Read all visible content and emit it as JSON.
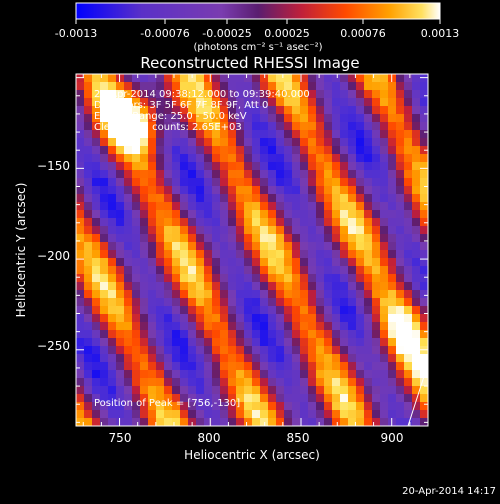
{
  "colorbar": {
    "tick_labels": [
      "-0.0013",
      "-0.00076",
      "-0.00025",
      "0.00025",
      "0.00076",
      "0.0013"
    ],
    "min": -0.0013,
    "max": 0.0013,
    "unit_text": "(photons cm⁻² s⁻¹ asec⁻²)"
  },
  "plot": {
    "title": "Reconstructed RHESSI Image",
    "xlabel": "Heliocentric X (arcsec)",
    "ylabel": "Heliocentric Y (arcsec)"
  },
  "annotations": {
    "line1": "20-Apr-2014 09:38:12.000 to 09:39:40.000",
    "line2": "Detectors: 3F 5F 6F 7F 8F 9F, Att 0",
    "line3": "Energy Range: 25.0 - 50.0 keV",
    "line4": "Clean  Total counts: 2.65E+03",
    "peak": "Position of Peak = [756,-130]"
  },
  "footer": {
    "timestamp": "20-Apr-2014 14:17"
  },
  "colors": {
    "background": "#000000",
    "axis": "#ffffff",
    "text": "#ffffff",
    "colormap": [
      "#0000ff",
      "#4b2bd1",
      "#7a3cb0",
      "#6a2a90",
      "#c0203a",
      "#ff5000",
      "#ffa000",
      "#ffe040",
      "#ffffff"
    ]
  },
  "chart_data": {
    "type": "heatmap",
    "title": "Reconstructed RHESSI Image",
    "xlabel": "Heliocentric X (arcsec)",
    "ylabel": "Heliocentric Y (arcsec)",
    "xlim": [
      726,
      920
    ],
    "ylim": [
      -292,
      -98
    ],
    "xticks": [
      750,
      800,
      850,
      900
    ],
    "yticks": [
      -150,
      -200,
      -250
    ],
    "colorbar_range": [
      -0.0013,
      0.0013
    ],
    "peak_position": [
      756,
      -130
    ],
    "grid": false,
    "legend": "none"
  }
}
